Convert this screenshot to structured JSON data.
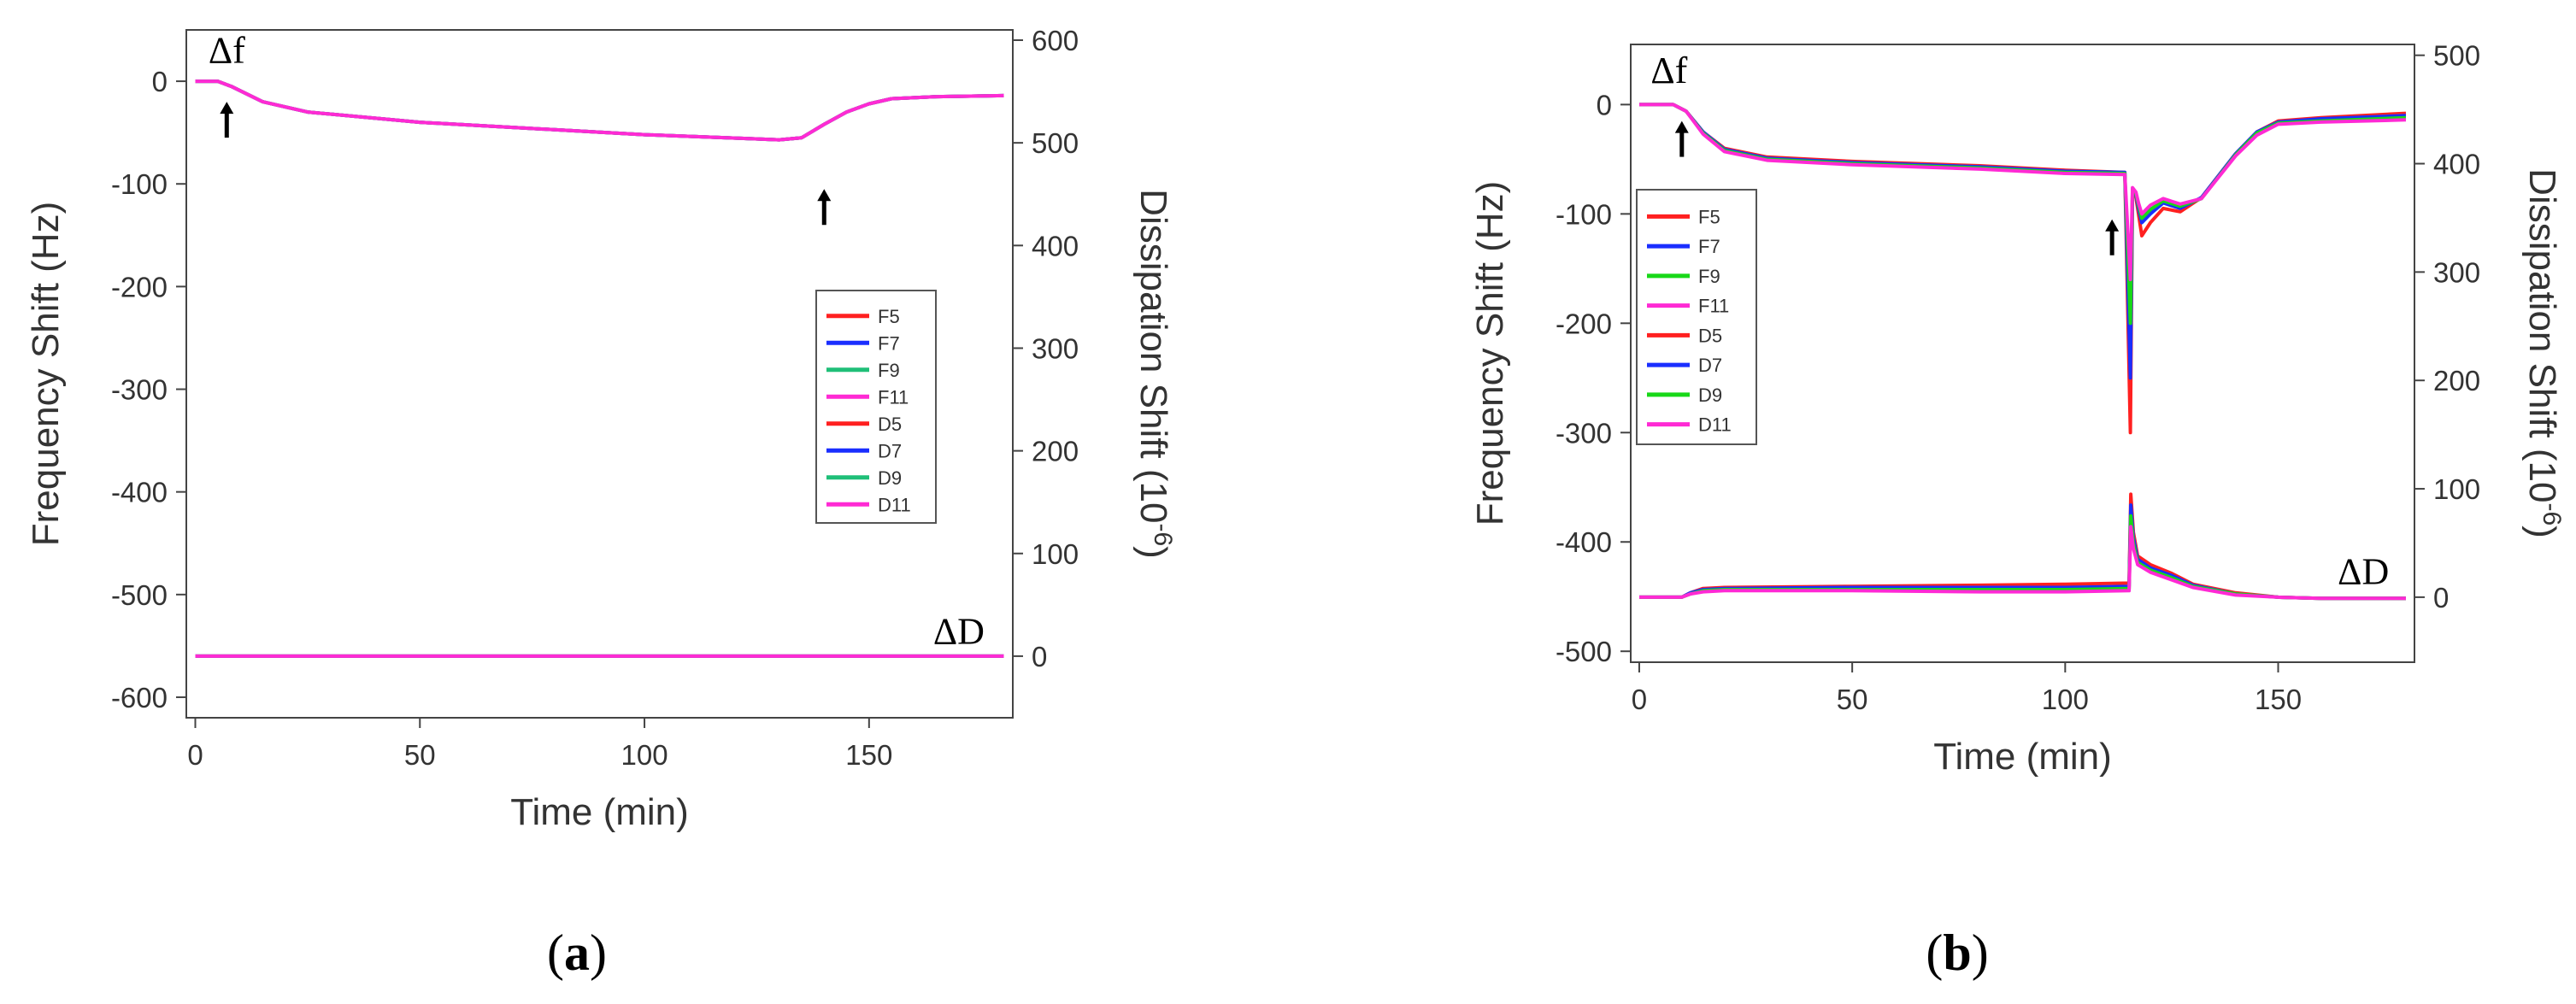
{
  "chart_data": [
    {
      "type": "line",
      "panel_label": "a",
      "xlabel": "Time (min)",
      "ylabel_left": "Frequency Shift (Hz)",
      "ylabel_right_base": "Dissipation Shift (10",
      "ylabel_right_exp": "-6",
      "ylabel_right_close": ")",
      "xlim": [
        -2,
        182
      ],
      "ylim_left": [
        -620,
        50
      ],
      "ylim_right": [
        -60,
        610
      ],
      "xticks": [
        0,
        50,
        100,
        150
      ],
      "yticks_left": [
        0,
        -100,
        -200,
        -300,
        -400,
        -500,
        -600
      ],
      "yticks_right": [
        600,
        500,
        400,
        300,
        200,
        100,
        0
      ],
      "annotations": [
        {
          "text": "Δf",
          "x": 7,
          "y": 18,
          "axis": "left"
        },
        {
          "text": "ΔD",
          "x": 170,
          "y": 12,
          "axis": "right"
        }
      ],
      "arrows": [
        {
          "x": 7,
          "y": -20
        },
        {
          "x": 140,
          "y": -105
        }
      ],
      "legend": [
        "F5",
        "F7",
        "F9",
        "F11",
        "D5",
        "D7",
        "D9",
        "D11"
      ],
      "legend_position": "right-middle",
      "series": [
        {
          "name": "F5",
          "axis": "left",
          "color": "#ff2020",
          "x": [
            0,
            5,
            8,
            15,
            25,
            50,
            100,
            130,
            135,
            140,
            145,
            150,
            155,
            165,
            180
          ],
          "y": [
            0,
            0,
            -5,
            -20,
            -30,
            -40,
            -52,
            -57,
            -55,
            -42,
            -30,
            -22,
            -17,
            -15,
            -14
          ]
        },
        {
          "name": "F7",
          "axis": "left",
          "color": "#1a2eff",
          "x": [
            0,
            5,
            8,
            15,
            25,
            50,
            100,
            130,
            135,
            140,
            145,
            150,
            155,
            165,
            180
          ],
          "y": [
            0,
            0,
            -5,
            -20,
            -30,
            -40,
            -52,
            -57,
            -55,
            -42,
            -30,
            -22,
            -17,
            -15,
            -14
          ]
        },
        {
          "name": "F9",
          "axis": "left",
          "color": "#1fbf78",
          "x": [
            0,
            5,
            8,
            15,
            25,
            50,
            100,
            130,
            135,
            140,
            145,
            150,
            155,
            165,
            180
          ],
          "y": [
            0,
            0,
            -5,
            -20,
            -30,
            -40,
            -52,
            -57,
            -55,
            -42,
            -30,
            -22,
            -17,
            -15,
            -14
          ]
        },
        {
          "name": "F11",
          "axis": "left",
          "color": "#ff2ad4",
          "x": [
            0,
            5,
            8,
            15,
            25,
            50,
            100,
            130,
            135,
            140,
            145,
            150,
            155,
            165,
            180
          ],
          "y": [
            0,
            0,
            -5,
            -20,
            -30,
            -40,
            -52,
            -57,
            -55,
            -42,
            -30,
            -22,
            -17,
            -15,
            -14
          ]
        },
        {
          "name": "D5",
          "axis": "right",
          "color": "#ff2020",
          "x": [
            0,
            180
          ],
          "y": [
            0,
            0
          ]
        },
        {
          "name": "D7",
          "axis": "right",
          "color": "#1a2eff",
          "x": [
            0,
            180
          ],
          "y": [
            0,
            0
          ]
        },
        {
          "name": "D9",
          "axis": "right",
          "color": "#1fbf78",
          "x": [
            0,
            180
          ],
          "y": [
            0,
            0
          ]
        },
        {
          "name": "D11",
          "axis": "right",
          "color": "#ff2ad4",
          "x": [
            0,
            180
          ],
          "y": [
            0,
            0
          ]
        }
      ]
    },
    {
      "type": "line",
      "panel_label": "b",
      "xlabel": "Time (min)",
      "ylabel_left": "Frequency Shift (Hz)",
      "ylabel_right_base": "Dissipation Shift (10",
      "ylabel_right_exp": "-6",
      "ylabel_right_close": ")",
      "xlim": [
        -2,
        182
      ],
      "ylim_left": [
        -510,
        55
      ],
      "ylim_right": [
        -60,
        510
      ],
      "xticks": [
        0,
        50,
        100,
        150
      ],
      "yticks_left": [
        0,
        -100,
        -200,
        -300,
        -400,
        -500
      ],
      "yticks_right": [
        500,
        400,
        300,
        200,
        100,
        0
      ],
      "annotations": [
        {
          "text": "Δf",
          "x": 7,
          "y": 20,
          "axis": "left"
        },
        {
          "text": "ΔD",
          "x": 170,
          "y": 12,
          "axis": "right"
        }
      ],
      "arrows": [
        {
          "x": 10,
          "y": -15
        },
        {
          "x": 111,
          "y": -105
        }
      ],
      "legend": [
        "F5",
        "F7",
        "F9",
        "F11",
        "D5",
        "D7",
        "D9",
        "D11"
      ],
      "legend_position": "left-middle",
      "series": [
        {
          "name": "F5",
          "axis": "left",
          "color": "#ff2020",
          "x": [
            0,
            8,
            11,
            15,
            20,
            30,
            50,
            80,
            100,
            114,
            115.3,
            115.8,
            116.6,
            117.2,
            118,
            120,
            123,
            127,
            132,
            140,
            145,
            150,
            160,
            180
          ],
          "y": [
            0,
            0,
            -6,
            -25,
            -40,
            -48,
            -52,
            -56,
            -60,
            -62,
            -300,
            -78,
            -85,
            -100,
            -120,
            -108,
            -95,
            -98,
            -85,
            -45,
            -25,
            -15,
            -12,
            -8
          ]
        },
        {
          "name": "F7",
          "axis": "left",
          "color": "#1a2eff",
          "x": [
            0,
            8,
            11,
            15,
            20,
            30,
            50,
            80,
            100,
            114,
            115.3,
            115.8,
            116.6,
            117.2,
            118,
            120,
            123,
            127,
            132,
            140,
            145,
            150,
            160,
            180
          ],
          "y": [
            0,
            0,
            -6,
            -25,
            -41,
            -49,
            -53,
            -57,
            -61,
            -62,
            -250,
            -78,
            -83,
            -95,
            -108,
            -100,
            -90,
            -95,
            -85,
            -45,
            -25,
            -16,
            -13,
            -10
          ]
        },
        {
          "name": "F9",
          "axis": "left",
          "color": "#18d818",
          "x": [
            0,
            8,
            11,
            15,
            20,
            30,
            50,
            80,
            100,
            114,
            115.3,
            115.8,
            116.6,
            117.2,
            118,
            120,
            123,
            127,
            132,
            140,
            145,
            150,
            160,
            180
          ],
          "y": [
            0,
            0,
            -6,
            -26,
            -42,
            -50,
            -54,
            -58,
            -62,
            -63,
            -200,
            -77,
            -82,
            -92,
            -104,
            -96,
            -88,
            -93,
            -86,
            -46,
            -26,
            -17,
            -15,
            -12
          ]
        },
        {
          "name": "F11",
          "axis": "left",
          "color": "#ff2ad4",
          "x": [
            0,
            8,
            11,
            15,
            20,
            30,
            50,
            80,
            100,
            114,
            115.3,
            115.8,
            116.6,
            117.2,
            118,
            120,
            123,
            127,
            132,
            140,
            145,
            150,
            160,
            180
          ],
          "y": [
            0,
            0,
            -6,
            -27,
            -43,
            -51,
            -55,
            -59,
            -63,
            -64,
            -160,
            -76,
            -80,
            -90,
            -100,
            -92,
            -86,
            -91,
            -86,
            -47,
            -28,
            -18,
            -16,
            -14
          ]
        },
        {
          "name": "D5",
          "axis": "right",
          "color": "#ff2020",
          "x": [
            0,
            10,
            12,
            15,
            20,
            50,
            80,
            100,
            115,
            115.4,
            116,
            117,
            120,
            125,
            130,
            140,
            150,
            160,
            180
          ],
          "y": [
            0,
            0,
            4,
            8,
            9,
            10,
            11,
            12,
            13,
            95,
            60,
            38,
            30,
            22,
            12,
            4,
            0,
            -1,
            -1
          ]
        },
        {
          "name": "D7",
          "axis": "right",
          "color": "#1a2eff",
          "x": [
            0,
            10,
            12,
            15,
            20,
            50,
            80,
            100,
            115,
            115.4,
            116,
            117,
            120,
            125,
            130,
            140,
            150,
            160,
            180
          ],
          "y": [
            0,
            0,
            4,
            7,
            8,
            9,
            9,
            9,
            10,
            85,
            55,
            35,
            27,
            20,
            11,
            3,
            0,
            -1,
            -1
          ]
        },
        {
          "name": "D9",
          "axis": "right",
          "color": "#18d818",
          "x": [
            0,
            10,
            12,
            15,
            20,
            50,
            80,
            100,
            115,
            115.4,
            116,
            117,
            120,
            125,
            130,
            140,
            150,
            160,
            180
          ],
          "y": [
            0,
            0,
            3,
            6,
            7,
            7,
            7,
            7,
            8,
            75,
            50,
            32,
            25,
            18,
            10,
            3,
            0,
            -1,
            -1
          ]
        },
        {
          "name": "D11",
          "axis": "right",
          "color": "#ff2ad4",
          "x": [
            0,
            10,
            12,
            15,
            20,
            50,
            80,
            100,
            115,
            115.4,
            116,
            117,
            120,
            125,
            130,
            140,
            150,
            160,
            180
          ],
          "y": [
            0,
            0,
            3,
            5,
            6,
            6,
            5,
            5,
            6,
            65,
            45,
            30,
            23,
            16,
            9,
            2,
            0,
            -1,
            -1
          ]
        }
      ]
    }
  ],
  "panel_captions": [
    {
      "open": "(",
      "letter": "a",
      "close": ")"
    },
    {
      "open": "(",
      "letter": "b",
      "close": ")"
    }
  ]
}
